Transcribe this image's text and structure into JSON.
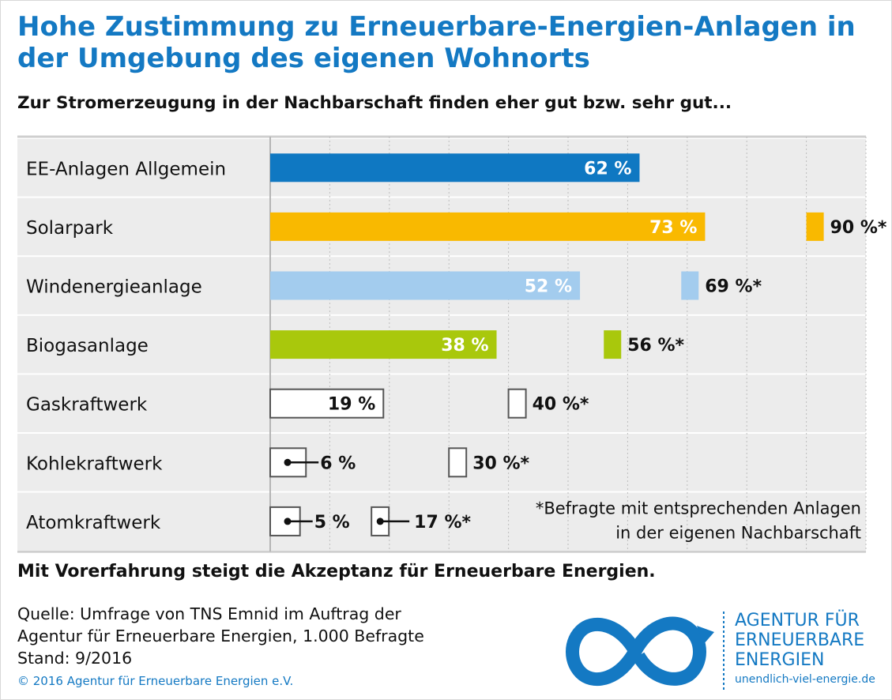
{
  "title": "Hohe Zustimmung zu Erneuerbare-Energien-Anlagen in der Umgebung des eigenen Wohnorts",
  "subtitle": "Zur Stromerzeugung in der Nachbarschaft finden eher gut bzw. sehr gut...",
  "chart_data": {
    "type": "bar",
    "orientation": "horizontal",
    "categories": [
      "EE-Anlagen Allgemein",
      "Solarpark",
      "Windenergieanlage",
      "Biogasanlage",
      "Gaskraftwerk",
      "Kohlekraftwerk",
      "Atomkraftwerk"
    ],
    "series": [
      {
        "values": [
          62,
          73,
          52,
          38,
          19,
          6,
          5
        ],
        "labels": [
          "62 %",
          "73 %",
          "52 %",
          "38 %",
          "19 %",
          "6 %",
          "5 %"
        ]
      },
      {
        "values": [
          null,
          90,
          69,
          56,
          40,
          30,
          17
        ],
        "labels": [
          null,
          "90 %*",
          "69 %*",
          "56 %*",
          "40 %*",
          "30 %*",
          "17 %*"
        ]
      }
    ],
    "colors": [
      "#0f78c2",
      "#f9b900",
      "#a3ccee",
      "#a9c80c",
      "#ffffff",
      "#ffffff",
      "#ffffff"
    ],
    "xlim": [
      0,
      100
    ],
    "unit": "%",
    "grid": true,
    "footnote": [
      "*Befragte mit entsprechenden Anlagen",
      "in der eigenen Nachbarschaft"
    ]
  },
  "takeaway": "Mit Vorerfahrung steigt die Akzeptanz für Erneuerbare Energien.",
  "source": [
    "Quelle: Umfrage von TNS Emnid im Auftrag der",
    "Agentur für Erneuerbare Energien, 1.000 Befragte",
    "Stand: 9/2016"
  ],
  "copyright": "© 2016 Agentur für Erneuerbare Energien e.V.",
  "logo": {
    "lines": [
      "AGENTUR FÜR",
      "ERNEUERBARE",
      "ENERGIEN"
    ],
    "url": "unendlich-viel-energie.de",
    "icon": "infinity-logo-icon"
  }
}
